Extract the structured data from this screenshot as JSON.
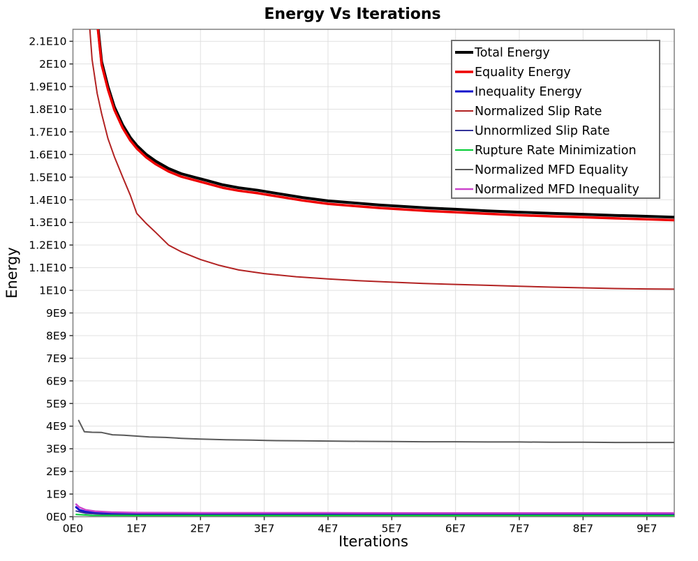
{
  "title": "Energy Vs Iterations",
  "chart_data": {
    "type": "line",
    "title": "Energy Vs Iterations",
    "xlabel": "Iterations",
    "ylabel": "Energy",
    "x_scale": 10000000.0,
    "y_scale": 1000000000.0,
    "xlim": [
      0,
      9.43
    ],
    "ylim": [
      0,
      21.53
    ],
    "grid": true,
    "legend_position": "top-right",
    "colors": {
      "grid": "#e0e0e0",
      "plot_border": "#808080",
      "tick": "#333333",
      "legend_border": "#707070",
      "background": "#ffffff"
    },
    "x_ticks": [
      {
        "v": 0,
        "label": "0E0"
      },
      {
        "v": 1,
        "label": "1E7"
      },
      {
        "v": 2,
        "label": "2E7"
      },
      {
        "v": 3,
        "label": "3E7"
      },
      {
        "v": 4,
        "label": "4E7"
      },
      {
        "v": 5,
        "label": "5E7"
      },
      {
        "v": 6,
        "label": "6E7"
      },
      {
        "v": 7,
        "label": "7E7"
      },
      {
        "v": 8,
        "label": "8E7"
      },
      {
        "v": 9,
        "label": "9E7"
      }
    ],
    "y_ticks": [
      {
        "v": 0,
        "label": "0E0"
      },
      {
        "v": 1,
        "label": "1E9"
      },
      {
        "v": 2,
        "label": "2E9"
      },
      {
        "v": 3,
        "label": "3E9"
      },
      {
        "v": 4,
        "label": "4E9"
      },
      {
        "v": 5,
        "label": "5E9"
      },
      {
        "v": 6,
        "label": "6E9"
      },
      {
        "v": 7,
        "label": "7E9"
      },
      {
        "v": 8,
        "label": "8E9"
      },
      {
        "v": 9,
        "label": "9E9"
      },
      {
        "v": 10,
        "label": "1E10"
      },
      {
        "v": 11,
        "label": "1.1E10"
      },
      {
        "v": 12,
        "label": "1.2E10"
      },
      {
        "v": 13,
        "label": "1.3E10"
      },
      {
        "v": 14,
        "label": "1.4E10"
      },
      {
        "v": 15,
        "label": "1.5E10"
      },
      {
        "v": 16,
        "label": "1.6E10"
      },
      {
        "v": 17,
        "label": "1.7E10"
      },
      {
        "v": 18,
        "label": "1.8E10"
      },
      {
        "v": 19,
        "label": "1.9E10"
      },
      {
        "v": 20,
        "label": "2E10"
      },
      {
        "v": 21,
        "label": "2.1E10"
      }
    ],
    "series": [
      {
        "name": "Total Energy",
        "color": "#000000",
        "width": 4,
        "x": [
          0.36,
          0.45,
          0.55,
          0.65,
          0.78,
          0.9,
          1.0,
          1.15,
          1.3,
          1.5,
          1.7,
          1.9,
          2.1,
          2.35,
          2.6,
          2.9,
          3.2,
          3.6,
          4.0,
          4.4,
          4.8,
          5.2,
          5.6,
          6.0,
          6.5,
          7.0,
          7.5,
          8.0,
          8.5,
          9.0,
          9.42
        ],
        "y": [
          22.5,
          20.1,
          19.0,
          18.1,
          17.3,
          16.75,
          16.4,
          16.0,
          15.7,
          15.38,
          15.15,
          15.0,
          14.85,
          14.66,
          14.53,
          14.42,
          14.28,
          14.1,
          13.95,
          13.86,
          13.77,
          13.7,
          13.63,
          13.58,
          13.51,
          13.45,
          13.4,
          13.36,
          13.31,
          13.27,
          13.23
        ]
      },
      {
        "name": "Equality Energy",
        "color": "#ee0000",
        "width": 3.5,
        "x": [
          0.36,
          0.45,
          0.55,
          0.65,
          0.78,
          0.9,
          1.0,
          1.15,
          1.3,
          1.5,
          1.7,
          1.9,
          2.1,
          2.35,
          2.6,
          2.9,
          3.2,
          3.6,
          4.0,
          4.4,
          4.8,
          5.2,
          5.6,
          6.0,
          6.5,
          7.0,
          7.5,
          8.0,
          8.5,
          9.0,
          9.42
        ],
        "y": [
          22.37,
          19.97,
          18.87,
          17.97,
          17.17,
          16.62,
          16.27,
          15.87,
          15.57,
          15.25,
          15.02,
          14.87,
          14.72,
          14.53,
          14.4,
          14.29,
          14.15,
          13.97,
          13.82,
          13.73,
          13.64,
          13.57,
          13.5,
          13.45,
          13.38,
          13.32,
          13.27,
          13.23,
          13.18,
          13.14,
          13.1
        ]
      },
      {
        "name": "Inequality Energy",
        "color": "#1414cc",
        "width": 3,
        "x": [
          0.05,
          0.1,
          0.2,
          0.4,
          0.8,
          1.5,
          3.0,
          6.0,
          9.42
        ],
        "y": [
          0.42,
          0.3,
          0.22,
          0.18,
          0.15,
          0.14,
          0.13,
          0.13,
          0.13
        ]
      },
      {
        "name": "Normalized Slip Rate",
        "color": "#b22222",
        "width": 2,
        "x": [
          0.24,
          0.3,
          0.38,
          0.45,
          0.55,
          0.65,
          0.78,
          0.9,
          1.0,
          1.15,
          1.3,
          1.5,
          1.7,
          2.0,
          2.3,
          2.6,
          3.0,
          3.5,
          4.0,
          4.5,
          5.0,
          5.5,
          6.0,
          6.5,
          7.0,
          7.5,
          8.0,
          8.5,
          9.0,
          9.42
        ],
        "y": [
          22.5,
          20.2,
          18.7,
          17.8,
          16.7,
          15.9,
          15.0,
          14.2,
          13.4,
          12.95,
          12.55,
          12.0,
          11.7,
          11.36,
          11.1,
          10.9,
          10.74,
          10.6,
          10.5,
          10.42,
          10.36,
          10.3,
          10.26,
          10.22,
          10.18,
          10.14,
          10.11,
          10.08,
          10.06,
          10.05
        ]
      },
      {
        "name": "Unnormlized Slip Rate",
        "color": "#333399",
        "width": 2,
        "x": [
          0.05,
          0.2,
          0.5,
          1.0,
          3.0,
          6.0,
          9.42
        ],
        "y": [
          0.25,
          0.15,
          0.1,
          0.09,
          0.08,
          0.08,
          0.08
        ]
      },
      {
        "name": "Rupture Rate Minimization",
        "color": "#00cc33",
        "width": 2,
        "x": [
          0.05,
          0.3,
          1.0,
          3.0,
          6.0,
          9.42
        ],
        "y": [
          0.1,
          0.06,
          0.05,
          0.05,
          0.05,
          0.05
        ]
      },
      {
        "name": "Normalized MFD Equality",
        "color": "#595959",
        "width": 2,
        "x": [
          0.09,
          0.18,
          0.3,
          0.45,
          0.62,
          0.8,
          1.0,
          1.2,
          1.45,
          1.7,
          2.0,
          2.4,
          2.8,
          3.2,
          3.6,
          4.0,
          4.5,
          5.0,
          5.5,
          6.0,
          6.5,
          7.0,
          7.5,
          8.0,
          8.5,
          9.0,
          9.42
        ],
        "y": [
          4.25,
          3.75,
          3.73,
          3.72,
          3.62,
          3.6,
          3.56,
          3.52,
          3.5,
          3.46,
          3.43,
          3.4,
          3.38,
          3.36,
          3.35,
          3.34,
          3.33,
          3.32,
          3.31,
          3.31,
          3.3,
          3.3,
          3.29,
          3.29,
          3.28,
          3.28,
          3.28
        ]
      },
      {
        "name": "Normalized MFD Inequality",
        "color": "#cc44cc",
        "width": 2.5,
        "x": [
          0.05,
          0.1,
          0.2,
          0.35,
          0.6,
          1.0,
          2.0,
          4.0,
          6.0,
          9.42
        ],
        "y": [
          0.55,
          0.42,
          0.3,
          0.24,
          0.2,
          0.18,
          0.17,
          0.17,
          0.16,
          0.16
        ]
      }
    ]
  }
}
